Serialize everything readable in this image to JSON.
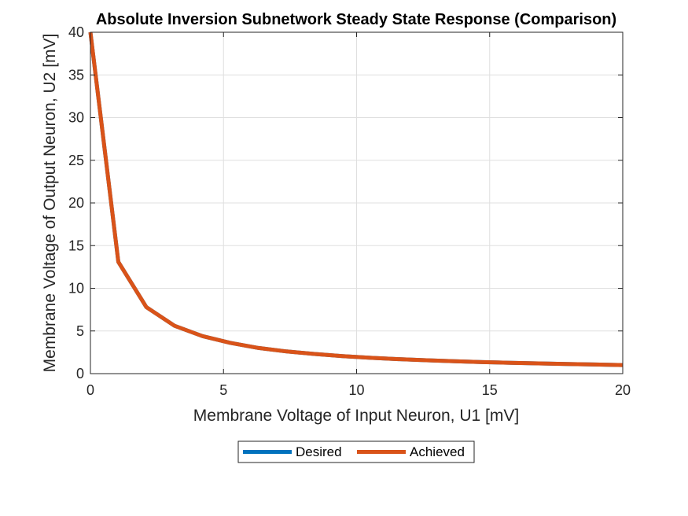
{
  "chart_data": {
    "type": "line",
    "title": "Absolute Inversion Subnetwork Steady State Response (Comparison)",
    "xlabel": "Membrane Voltage of Input Neuron, U1 [mV]",
    "ylabel": "Membrane Voltage of Output Neuron, U2 [mV]",
    "xlim": [
      0,
      20
    ],
    "ylim": [
      0,
      40
    ],
    "xticks": [
      0,
      5,
      10,
      15,
      20
    ],
    "yticks": [
      0,
      5,
      10,
      15,
      20,
      25,
      30,
      35,
      40
    ],
    "grid": true,
    "legend": "bottom-center",
    "x": [
      0,
      1.05,
      2.1,
      3.16,
      4.21,
      5.26,
      6.32,
      7.37,
      8.42,
      9.47,
      10.53,
      11.58,
      12.63,
      13.68,
      14.74,
      15.79,
      16.84,
      17.89,
      18.95,
      20
    ],
    "series": [
      {
        "name": "Desired",
        "color": "#0072BD",
        "values": [
          40,
          13.1,
          7.8,
          5.6,
          4.4,
          3.6,
          3.0,
          2.6,
          2.3,
          2.05,
          1.85,
          1.7,
          1.57,
          1.45,
          1.35,
          1.27,
          1.2,
          1.13,
          1.07,
          1.0
        ]
      },
      {
        "name": "Achieved",
        "color": "#D95319",
        "values": [
          40,
          13.1,
          7.8,
          5.6,
          4.4,
          3.6,
          3.0,
          2.6,
          2.3,
          2.05,
          1.85,
          1.7,
          1.57,
          1.45,
          1.35,
          1.27,
          1.2,
          1.13,
          1.07,
          1.0
        ]
      }
    ]
  }
}
